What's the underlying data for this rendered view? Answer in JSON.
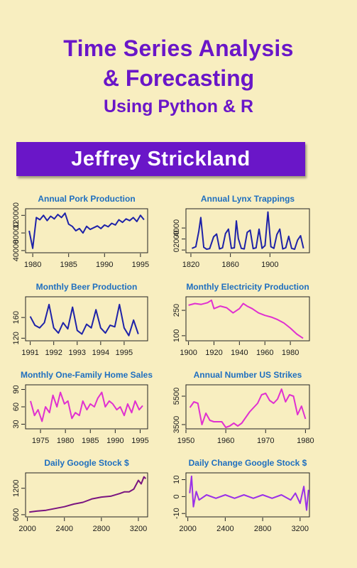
{
  "cover": {
    "title_line1": "Time Series Analysis",
    "title_line2": "& Forecasting",
    "subtitle": "Using Python & R",
    "author": "Jeffrey Strickland"
  },
  "colors": {
    "background": "#f8eec0",
    "title": "#6a16c8",
    "band": "#6a16c8",
    "plot_title": "#1f6fbf"
  },
  "chart_data": [
    {
      "type": "line",
      "title": "Annual Pork Production",
      "color": "#1e22a8",
      "xlim": [
        1979,
        1996
      ],
      "ylim": [
        35000,
        135000
      ],
      "xticks": [
        1980,
        1985,
        1990,
        1995
      ],
      "yticks": [
        40000,
        80000,
        120000
      ],
      "x": [
        1979.5,
        1980,
        1980.5,
        1981,
        1981.5,
        1982,
        1982.5,
        1983,
        1983.5,
        1984,
        1984.5,
        1985,
        1985.5,
        1986,
        1986.5,
        1987,
        1987.5,
        1988,
        1988.5,
        1989,
        1989.5,
        1990,
        1990.5,
        1991,
        1991.5,
        1992,
        1992.5,
        1993,
        1993.5,
        1994,
        1994.5,
        1995,
        1995.5
      ],
      "y": [
        85000,
        45000,
        115000,
        110000,
        120000,
        108000,
        118000,
        112000,
        122000,
        115000,
        125000,
        100000,
        95000,
        85000,
        90000,
        80000,
        95000,
        88000,
        92000,
        96000,
        90000,
        98000,
        94000,
        102000,
        98000,
        110000,
        104000,
        112000,
        108000,
        115000,
        106000,
        120000,
        110000
      ]
    },
    {
      "type": "line",
      "title": "Annual Lynx Trappings",
      "color": "#1e22a8",
      "xlim": [
        1815,
        1940
      ],
      "ylim": [
        -500,
        7500
      ],
      "xticks": [
        1820,
        1860,
        1900
      ],
      "yticks": [
        0,
        2000,
        4000
      ],
      "x": [
        1821,
        1825,
        1828,
        1830,
        1833,
        1836,
        1839,
        1843,
        1846,
        1849,
        1852,
        1855,
        1858,
        1861,
        1864,
        1866,
        1868,
        1871,
        1874,
        1877,
        1880,
        1883,
        1886,
        1889,
        1892,
        1895,
        1898,
        1901,
        1904,
        1907,
        1910,
        1913,
        1916,
        1919,
        1922,
        1925,
        1928,
        1931,
        1934
      ],
      "y": [
        300,
        600,
        3400,
        5900,
        500,
        150,
        250,
        2400,
        2900,
        200,
        400,
        3000,
        3800,
        300,
        400,
        5300,
        2100,
        300,
        200,
        3200,
        3600,
        250,
        400,
        3800,
        300,
        800,
        6900,
        600,
        300,
        2800,
        3800,
        200,
        400,
        2500,
        300,
        150,
        1800,
        2600,
        300
      ]
    },
    {
      "type": "line",
      "title": "Monthly  Beer Production",
      "color": "#1e22a8",
      "xlim": [
        1990.8,
        1996
      ],
      "ylim": [
        115,
        200
      ],
      "xticks": [
        1991,
        1992,
        1993,
        1994,
        1995
      ],
      "yticks": [
        120,
        160
      ],
      "x": [
        1991,
        1991.2,
        1991.4,
        1991.6,
        1991.8,
        1992,
        1992.2,
        1992.4,
        1992.6,
        1992.8,
        1993,
        1993.2,
        1993.4,
        1993.6,
        1993.8,
        1994,
        1994.2,
        1994.4,
        1994.6,
        1994.8,
        1995,
        1995.2,
        1995.4,
        1995.6
      ],
      "y": [
        162,
        145,
        140,
        150,
        185,
        140,
        130,
        150,
        138,
        180,
        135,
        128,
        147,
        140,
        175,
        140,
        130,
        145,
        142,
        185,
        140,
        125,
        155,
        128
      ]
    },
    {
      "type": "line",
      "title": "Monthly Electricity Production",
      "color": "#e030d0",
      "xlim": [
        1898,
        1995
      ],
      "ylim": [
        70,
        330
      ],
      "xticks": [
        1900,
        1920,
        1940,
        1960,
        1980
      ],
      "yticks": [
        100,
        250
      ],
      "x": [
        1900,
        1905,
        1910,
        1915,
        1918,
        1920,
        1925,
        1930,
        1935,
        1940,
        1943,
        1946,
        1950,
        1955,
        1960,
        1965,
        1970,
        1975,
        1980,
        1985,
        1990
      ],
      "y": [
        280,
        290,
        285,
        295,
        310,
        260,
        275,
        265,
        235,
        260,
        290,
        275,
        260,
        235,
        220,
        210,
        195,
        175,
        145,
        110,
        85
      ]
    },
    {
      "type": "line",
      "title": "Monthly One-Family Home Sales",
      "color": "#e030d0",
      "xlim": [
        1972,
        1996.5
      ],
      "ylim": [
        22,
        98
      ],
      "xticks": [
        1975,
        1980,
        1985,
        1990,
        1995
      ],
      "yticks": [
        30,
        60,
        90
      ],
      "x": [
        1973,
        1973.8,
        1974.5,
        1975.3,
        1976,
        1976.8,
        1977.5,
        1978.3,
        1979,
        1979.8,
        1980.5,
        1981.3,
        1982,
        1982.8,
        1983.5,
        1984.3,
        1985,
        1985.8,
        1986.5,
        1987.3,
        1988,
        1988.8,
        1989.5,
        1990.3,
        1991,
        1991.8,
        1992.5,
        1993.3,
        1994,
        1994.8,
        1995.5
      ],
      "y": [
        70,
        45,
        55,
        35,
        60,
        50,
        80,
        60,
        85,
        65,
        70,
        40,
        50,
        45,
        70,
        55,
        65,
        60,
        75,
        85,
        60,
        70,
        65,
        55,
        60,
        45,
        65,
        50,
        70,
        55,
        62
      ]
    },
    {
      "type": "line",
      "title": "Annual Number US Strikes",
      "color": "#e030d0",
      "xlim": [
        1950,
        1981
      ],
      "ylim": [
        3200,
        6300
      ],
      "xticks": [
        1950,
        1960,
        1970,
        1980
      ],
      "yticks": [
        3500,
        5500
      ],
      "x": [
        1951,
        1952,
        1953,
        1954,
        1955,
        1956,
        1957,
        1958,
        1959,
        1960,
        1961,
        1962,
        1963,
        1964,
        1965,
        1966,
        1967,
        1968,
        1969,
        1970,
        1971,
        1972,
        1973,
        1974,
        1975,
        1976,
        1977,
        1978,
        1979,
        1980
      ],
      "y": [
        4700,
        5100,
        5000,
        3500,
        4300,
        3800,
        3700,
        3700,
        3700,
        3300,
        3400,
        3600,
        3400,
        3600,
        4000,
        4400,
        4700,
        5000,
        5600,
        5700,
        5200,
        5000,
        5300,
        6000,
        5100,
        5600,
        5500,
        4200,
        4800,
        3900
      ]
    },
    {
      "type": "line",
      "title": "Daily Google Stock $",
      "color": "#7a1480",
      "xlim": [
        1980,
        3300
      ],
      "ylim": [
        550,
        1550
      ],
      "xticks": [
        2000,
        2400,
        2800,
        3200
      ],
      "yticks": [
        600,
        1200
      ],
      "x": [
        2020,
        2100,
        2200,
        2300,
        2400,
        2500,
        2600,
        2700,
        2800,
        2900,
        3000,
        3050,
        3100,
        3150,
        3200,
        3230,
        3260,
        3280
      ],
      "y": [
        660,
        680,
        700,
        740,
        780,
        840,
        880,
        960,
        1000,
        1020,
        1080,
        1120,
        1120,
        1180,
        1380,
        1300,
        1460,
        1420
      ]
    },
    {
      "type": "line",
      "title": "Daily Change Google Stock $",
      "color": "#9a30e8",
      "xlim": [
        1980,
        3300
      ],
      "ylim": [
        -12,
        14
      ],
      "xticks": [
        2000,
        2400,
        2800,
        3200
      ],
      "yticks": [
        -10,
        0,
        10
      ],
      "x": [
        2020,
        2040,
        2060,
        2090,
        2120,
        2200,
        2300,
        2400,
        2500,
        2600,
        2700,
        2800,
        2900,
        3000,
        3100,
        3150,
        3200,
        3240,
        3270,
        3290
      ],
      "y": [
        2,
        12,
        -6,
        3,
        -2,
        1,
        -1,
        1,
        -1,
        1,
        -1,
        1,
        -1,
        1,
        -2,
        2,
        -4,
        6,
        -8,
        4
      ]
    }
  ]
}
